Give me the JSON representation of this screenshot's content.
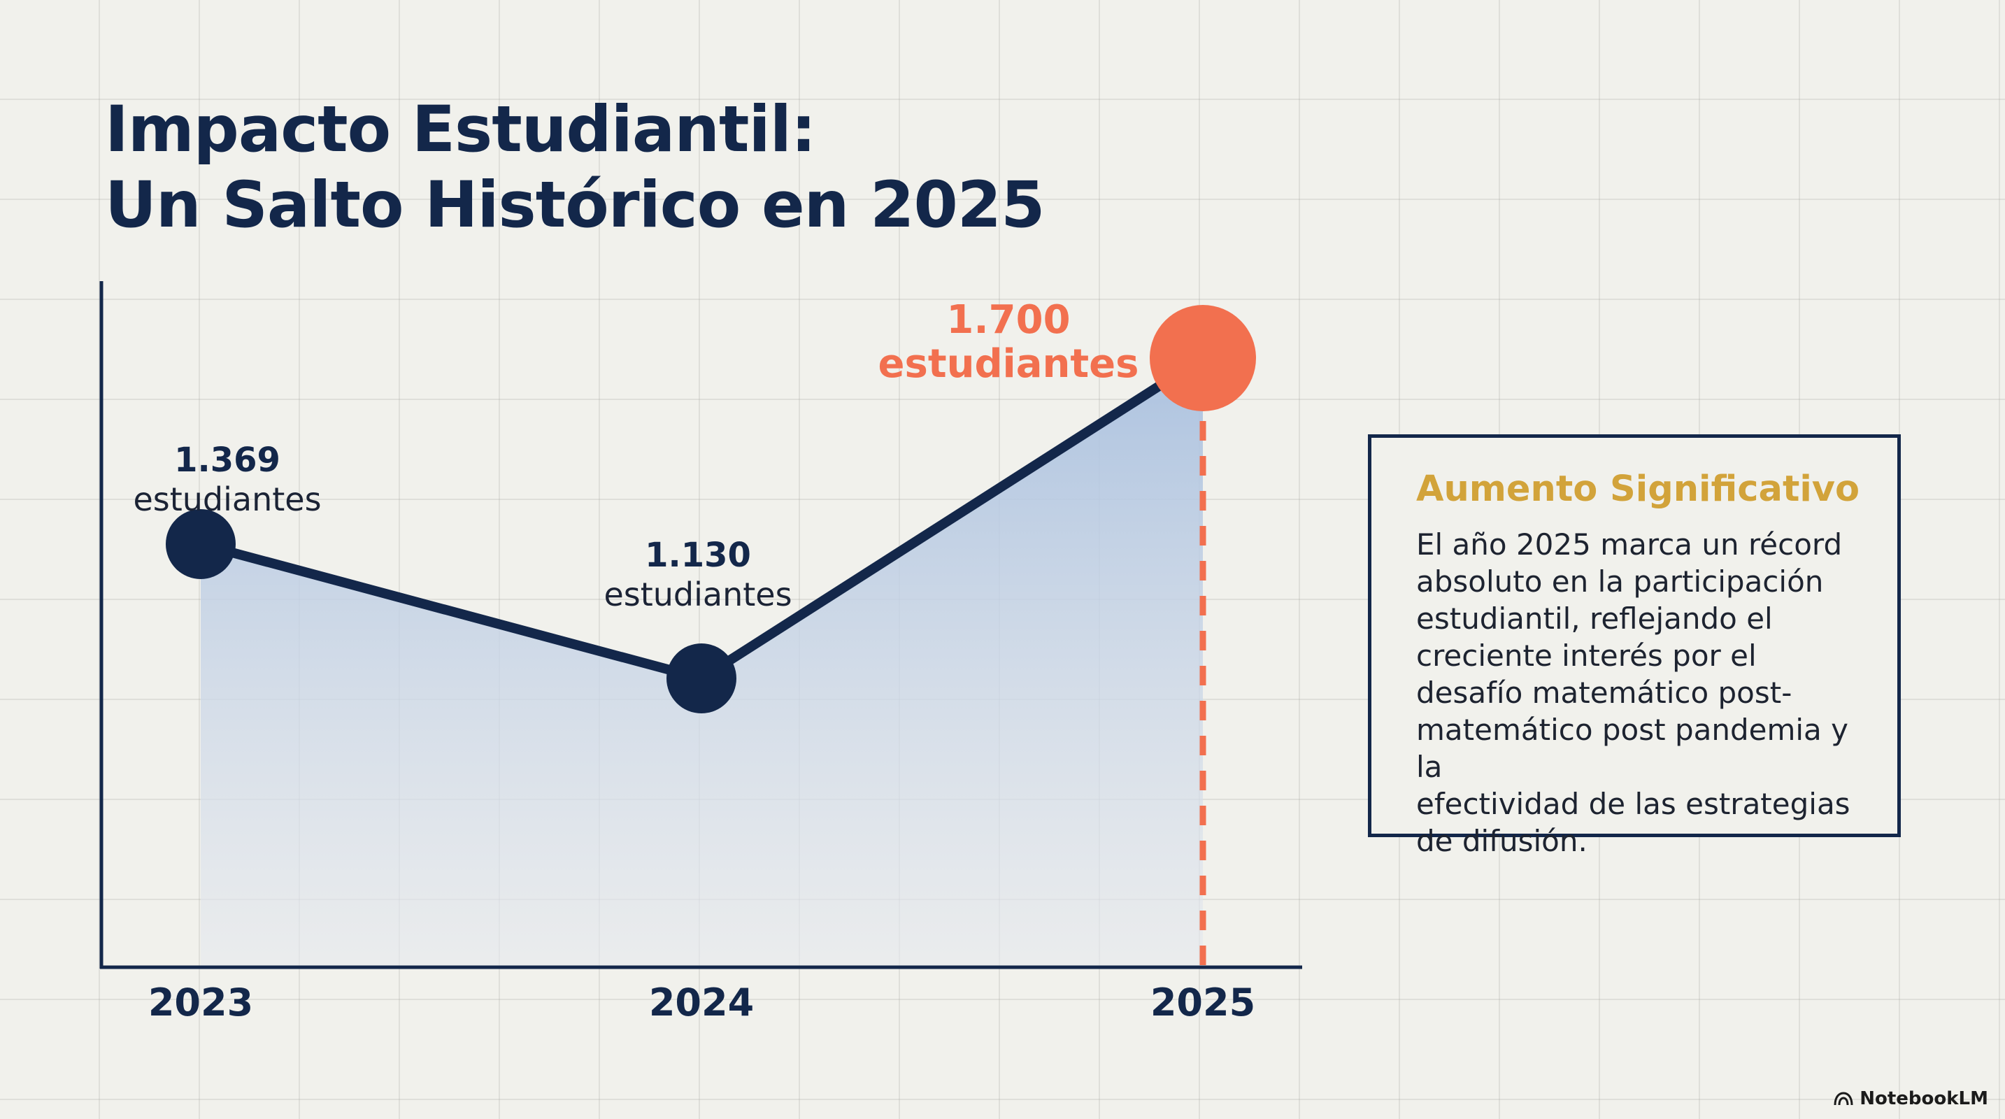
{
  "title": {
    "line1": "Impacto Estudiantil:",
    "line2": "Un Salto Histórico en 2025"
  },
  "chart_data": {
    "type": "area",
    "categories": [
      "2023",
      "2024",
      "2025"
    ],
    "values": [
      1369,
      1130,
      1700
    ],
    "data_labels": [
      {
        "value": "1.369",
        "unit": "estudiantes"
      },
      {
        "value": "1.130",
        "unit": "estudiantes"
      },
      {
        "value": "1.700",
        "unit": "estudiantes"
      }
    ],
    "highlight_index": 2,
    "grid": true,
    "colors": {
      "line": "#13274a",
      "highlight": "#f2704f",
      "area_top": "#a9c0df",
      "area_bottom": "#e6e9ee"
    }
  },
  "info_box": {
    "title": "Aumento Significativo",
    "lines": [
      "El año 2025 marca un récord",
      "absoluto en la participación",
      "estudiantil, reflejando el",
      "creciente interés por el",
      "desafío matemático post-",
      "matemático post pandemia y la",
      "efectividad de las estrategias",
      "de difusión."
    ]
  },
  "brand": {
    "icon": "notebooklm-logo-icon",
    "label": "NotebookLM"
  }
}
